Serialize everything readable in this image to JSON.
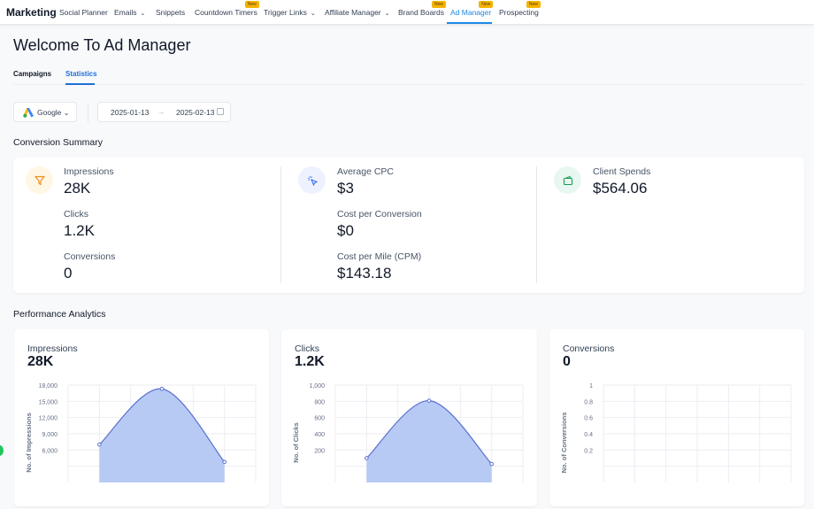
{
  "nav": {
    "brand": "Marketing",
    "items": [
      {
        "label": "Social Planner"
      },
      {
        "label": "Emails",
        "dropdown": true
      },
      {
        "label": "Snippets"
      },
      {
        "label": "Countdown Timers",
        "badge": "New"
      },
      {
        "label": "Trigger Links",
        "dropdown": true
      },
      {
        "label": "Affiliate Manager",
        "dropdown": true
      },
      {
        "label": "Brand Boards",
        "badge": "New"
      },
      {
        "label": "Ad Manager",
        "badge": "New",
        "active": true
      },
      {
        "label": "Prospecting",
        "badge": "New"
      }
    ]
  },
  "page": {
    "title": "Welcome To Ad Manager",
    "tabs": [
      "Campaigns",
      "Statistics"
    ],
    "active_tab": "Statistics"
  },
  "filters": {
    "platform": "Google",
    "start_date": "2025-01-13",
    "end_date": "2025-02-13"
  },
  "summary": {
    "title": "Conversion Summary",
    "impressions": {
      "label": "Impressions",
      "value": "28K"
    },
    "clicks": {
      "label": "Clicks",
      "value": "1.2K"
    },
    "conversions": {
      "label": "Conversions",
      "value": "0"
    },
    "avg_cpc": {
      "label": "Average CPC",
      "value": "$3"
    },
    "cost_per_conversion": {
      "label": "Cost per Conversion",
      "value": "$0"
    },
    "cpm": {
      "label": "Cost per Mile (CPM)",
      "value": "$143.18"
    },
    "client_spends": {
      "label": "Client Spends",
      "value": "$564.06"
    }
  },
  "analytics": {
    "title": "Performance Analytics",
    "cards": [
      {
        "title": "Impressions",
        "value": "28K"
      },
      {
        "title": "Clicks",
        "value": "1.2K"
      },
      {
        "title": "Conversions",
        "value": "0"
      }
    ]
  },
  "colors": {
    "accent": "#1e88e5",
    "area_fill": "#b3c7f2",
    "area_line": "#5a6fd0"
  },
  "chart_data": [
    {
      "type": "area",
      "ylabel": "No. of Impressions",
      "ylim": [
        0,
        18000
      ],
      "yticks": [
        "18,000",
        "15,000",
        "12,000",
        "9,000",
        "6,000"
      ],
      "values": [
        7000,
        17300,
        3800
      ],
      "grid": true
    },
    {
      "type": "area",
      "ylabel": "No. of Clicks",
      "ylim": [
        0,
        1000
      ],
      "yticks": [
        "1,000",
        "800",
        "600",
        "400",
        "200"
      ],
      "values": [
        250,
        840,
        190
      ],
      "grid": true
    },
    {
      "type": "area",
      "ylabel": "No. of Conversions",
      "ylim": [
        0,
        1
      ],
      "yticks": [
        "1",
        "0.8",
        "0.6",
        "0.4",
        "0.2"
      ],
      "values": [],
      "grid": true
    }
  ]
}
